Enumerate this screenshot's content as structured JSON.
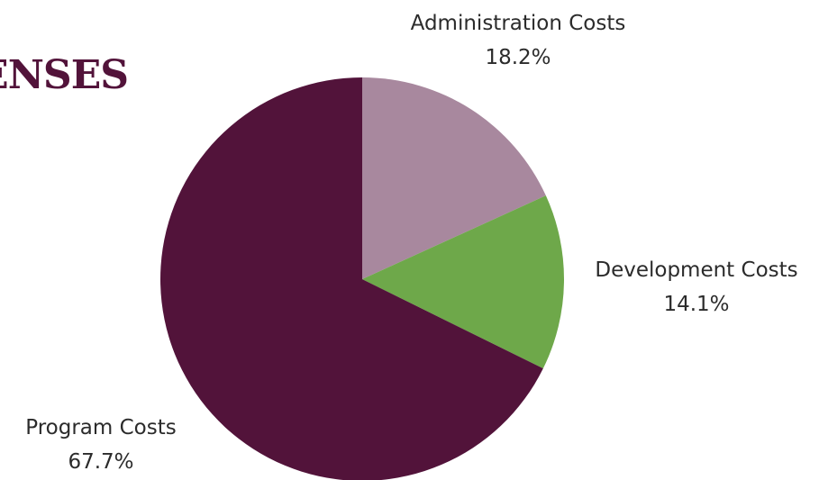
{
  "page": {
    "heading_visible_fragment": "ENSES"
  },
  "chart_data": {
    "type": "pie",
    "title": "",
    "start_angle_deg": 0,
    "direction": "clockwise",
    "slices": [
      {
        "label": "Administration Costs",
        "value": 18.2,
        "value_label": "18.2%",
        "color": "#a8889e"
      },
      {
        "label": "Development Costs",
        "value": 14.1,
        "value_label": "14.1%",
        "color": "#6ea84a"
      },
      {
        "label": "Program Costs",
        "value": 67.7,
        "value_label": "67.7%",
        "color": "#52133a"
      }
    ]
  }
}
